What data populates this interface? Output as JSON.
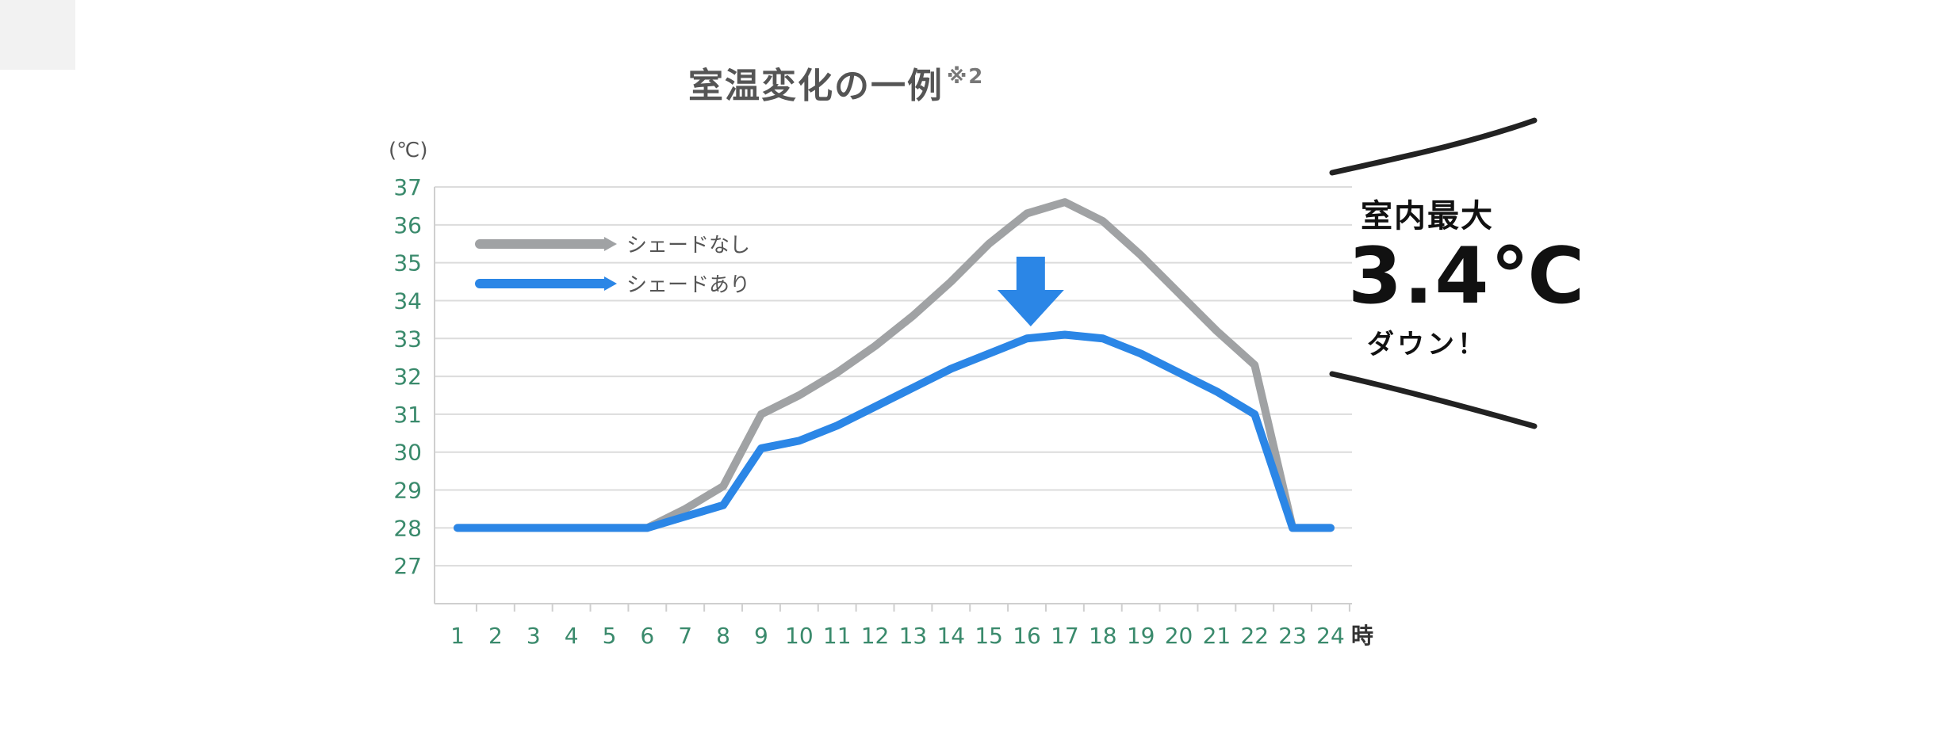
{
  "title": "室温変化の一例",
  "title_note": "※2",
  "callout": {
    "line1": "室内最大",
    "line2": "3.4℃",
    "line3": "ダウン！"
  },
  "colors": {
    "no_shade": "#a0a2a4",
    "with_shade": "#2b86e6",
    "arrow": "#2b86e6",
    "tick_label": "#3a8a6c",
    "grid": "#dcdcdc"
  },
  "chart_data": {
    "type": "line",
    "ylabel": "(℃)",
    "xlabel_suffix": "時",
    "x": [
      1,
      2,
      3,
      4,
      5,
      6,
      7,
      8,
      9,
      10,
      11,
      12,
      13,
      14,
      15,
      16,
      17,
      18,
      19,
      20,
      21,
      22,
      23,
      24
    ],
    "x_tick_labels": [
      "1",
      "2",
      "3",
      "4",
      "5",
      "6",
      "7",
      "8",
      "9",
      "10",
      "11",
      "12",
      "13",
      "14",
      "15",
      "16",
      "17",
      "18",
      "19",
      "20",
      "21",
      "22",
      "23",
      "24"
    ],
    "ylim": [
      26,
      37
    ],
    "y_ticks": [
      27,
      28,
      29,
      30,
      31,
      32,
      33,
      34,
      35,
      36,
      37
    ],
    "grid": true,
    "legend": "top-left",
    "series": [
      {
        "name": "シェードなし",
        "values": [
          28,
          28,
          28,
          28,
          28,
          28,
          28.5,
          29.1,
          31,
          31.5,
          32.1,
          32.8,
          33.6,
          34.5,
          35.5,
          36.3,
          36.6,
          36.1,
          35.2,
          34.2,
          33.2,
          32.3,
          28,
          28
        ]
      },
      {
        "name": "シェードあり",
        "values": [
          28,
          28,
          28,
          28,
          28,
          28,
          28.3,
          28.6,
          30.1,
          30.3,
          30.7,
          31.2,
          31.7,
          32.2,
          32.6,
          33,
          33.1,
          33,
          32.6,
          32.1,
          31.6,
          31,
          28,
          28
        ]
      }
    ]
  }
}
